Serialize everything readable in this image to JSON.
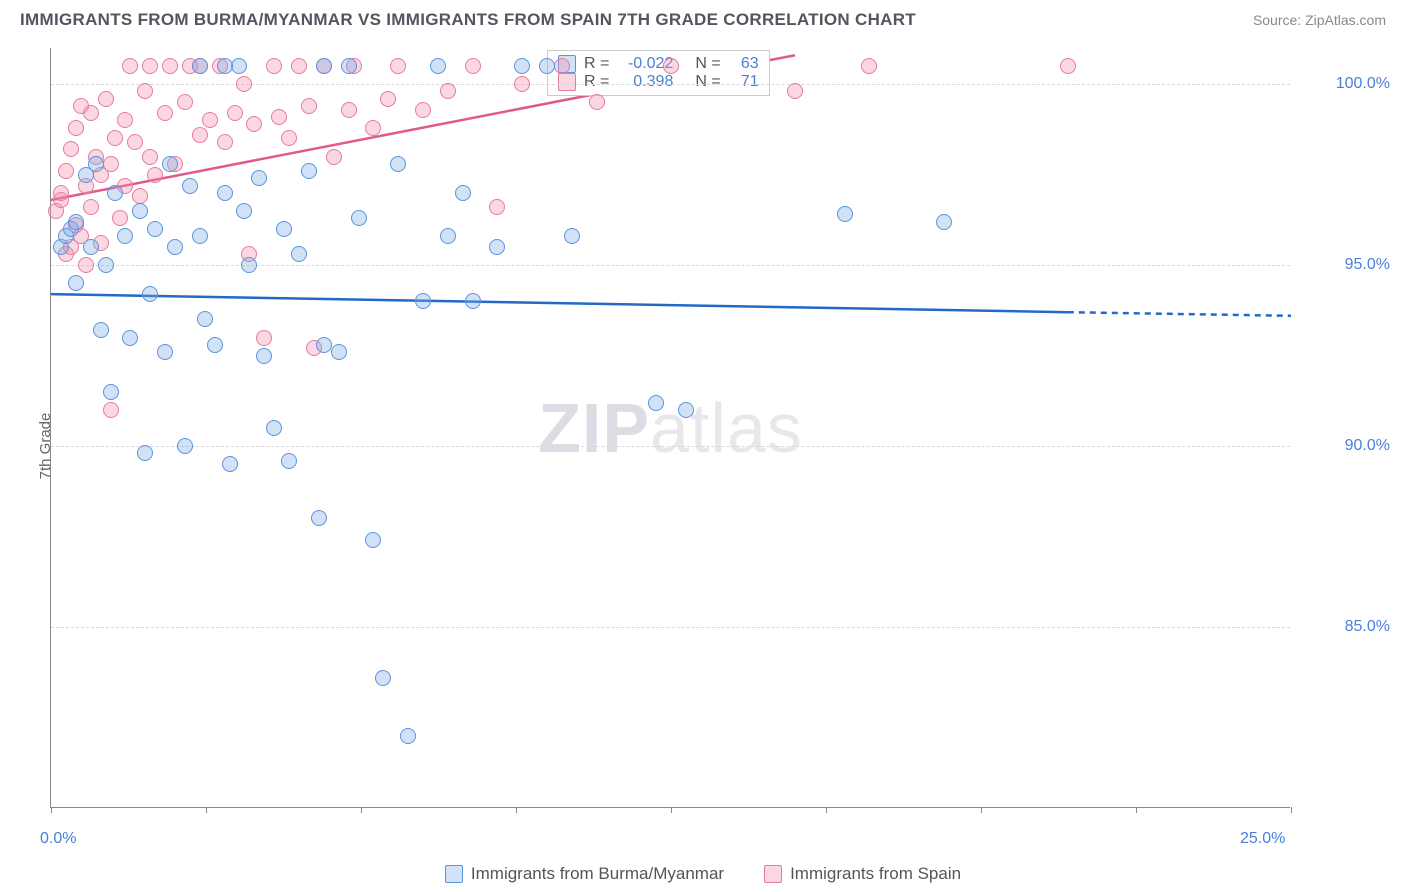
{
  "title": "IMMIGRANTS FROM BURMA/MYANMAR VS IMMIGRANTS FROM SPAIN 7TH GRADE CORRELATION CHART",
  "source": "Source: ZipAtlas.com",
  "ylabel": "7th Grade",
  "watermark_a": "ZIP",
  "watermark_b": "atlas",
  "series": [
    {
      "key": "burma",
      "label": "Immigrants from Burma/Myanmar",
      "fill": "rgba(122,168,228,0.35)",
      "stroke": "#5a94dc",
      "line_color": "#2269c8",
      "r_label": "R =",
      "r_value": "-0.022",
      "n_label": "N =",
      "n_value": "63",
      "trend": {
        "x1": 0.0,
        "y1": 94.2,
        "x2": 20.5,
        "y2": 93.7,
        "dash_to_x": 25.0,
        "dash_to_y": 93.6
      }
    },
    {
      "key": "spain",
      "label": "Immigrants from Spain",
      "fill": "rgba(240,140,170,0.35)",
      "stroke": "#e67ba0",
      "line_color": "#e05a8a",
      "r_label": "R =",
      "r_value": "0.398",
      "n_label": "N =",
      "n_value": "71",
      "trend": {
        "x1": 0.0,
        "y1": 96.8,
        "x2": 15.0,
        "y2": 100.8
      }
    }
  ],
  "chart": {
    "xlim": [
      0,
      25
    ],
    "ylim": [
      80,
      101
    ],
    "yticks": [
      85.0,
      90.0,
      95.0,
      100.0
    ],
    "ytick_labels": [
      "85.0%",
      "90.0%",
      "95.0%",
      "100.0%"
    ],
    "xtick_marks": [
      0,
      3.125,
      6.25,
      9.375,
      12.5,
      15.625,
      18.75,
      21.875,
      25
    ],
    "xtick_labels": [
      {
        "x": 0,
        "text": "0.0%"
      },
      {
        "x": 25,
        "text": "25.0%"
      }
    ],
    "marker_radius": 8,
    "background": "#ffffff",
    "grid_color": "#d8d8dc"
  },
  "points": {
    "burma": [
      [
        0.2,
        95.5
      ],
      [
        0.3,
        95.8
      ],
      [
        0.4,
        96.0
      ],
      [
        0.5,
        96.2
      ],
      [
        0.5,
        94.5
      ],
      [
        0.7,
        97.5
      ],
      [
        0.8,
        95.5
      ],
      [
        0.9,
        97.8
      ],
      [
        1.0,
        93.2
      ],
      [
        1.1,
        95.0
      ],
      [
        1.2,
        91.5
      ],
      [
        1.3,
        97.0
      ],
      [
        1.5,
        95.8
      ],
      [
        1.6,
        93.0
      ],
      [
        1.8,
        96.5
      ],
      [
        1.9,
        89.8
      ],
      [
        2.0,
        94.2
      ],
      [
        2.1,
        96.0
      ],
      [
        2.3,
        92.6
      ],
      [
        2.4,
        97.8
      ],
      [
        2.5,
        95.5
      ],
      [
        2.7,
        90.0
      ],
      [
        2.8,
        97.2
      ],
      [
        3.0,
        95.8
      ],
      [
        3.0,
        100.5
      ],
      [
        3.1,
        93.5
      ],
      [
        3.3,
        92.8
      ],
      [
        3.5,
        97.0
      ],
      [
        3.6,
        89.5
      ],
      [
        3.8,
        100.5
      ],
      [
        3.9,
        96.5
      ],
      [
        4.0,
        95.0
      ],
      [
        4.2,
        97.4
      ],
      [
        4.3,
        92.5
      ],
      [
        4.5,
        90.5
      ],
      [
        4.7,
        96.0
      ],
      [
        4.8,
        89.6
      ],
      [
        5.0,
        95.3
      ],
      [
        5.2,
        97.6
      ],
      [
        5.4,
        88.0
      ],
      [
        5.5,
        92.8
      ],
      [
        5.8,
        92.6
      ],
      [
        6.0,
        100.5
      ],
      [
        6.2,
        96.3
      ],
      [
        6.5,
        87.4
      ],
      [
        6.7,
        83.6
      ],
      [
        7.0,
        97.8
      ],
      [
        7.2,
        82.0
      ],
      [
        7.5,
        94.0
      ],
      [
        7.8,
        100.5
      ],
      [
        8.0,
        95.8
      ],
      [
        8.3,
        97.0
      ],
      [
        8.5,
        94.0
      ],
      [
        9.0,
        95.5
      ],
      [
        9.5,
        100.5
      ],
      [
        10.5,
        95.8
      ],
      [
        12.2,
        91.2
      ],
      [
        12.8,
        91.0
      ],
      [
        16.0,
        96.4
      ],
      [
        18.0,
        96.2
      ],
      [
        10.0,
        100.5
      ],
      [
        5.5,
        100.5
      ],
      [
        3.5,
        100.5
      ]
    ],
    "spain": [
      [
        0.1,
        96.5
      ],
      [
        0.2,
        96.8
      ],
      [
        0.2,
        97.0
      ],
      [
        0.3,
        95.3
      ],
      [
        0.3,
        97.6
      ],
      [
        0.4,
        95.5
      ],
      [
        0.4,
        98.2
      ],
      [
        0.5,
        96.1
      ],
      [
        0.5,
        98.8
      ],
      [
        0.6,
        95.8
      ],
      [
        0.6,
        99.4
      ],
      [
        0.7,
        95.0
      ],
      [
        0.7,
        97.2
      ],
      [
        0.8,
        99.2
      ],
      [
        0.8,
        96.6
      ],
      [
        0.9,
        98.0
      ],
      [
        1.0,
        97.5
      ],
      [
        1.0,
        95.6
      ],
      [
        1.1,
        99.6
      ],
      [
        1.2,
        97.8
      ],
      [
        1.2,
        91.0
      ],
      [
        1.3,
        98.5
      ],
      [
        1.4,
        96.3
      ],
      [
        1.5,
        99.0
      ],
      [
        1.5,
        97.2
      ],
      [
        1.6,
        100.5
      ],
      [
        1.7,
        98.4
      ],
      [
        1.8,
        96.9
      ],
      [
        1.9,
        99.8
      ],
      [
        2.0,
        98.0
      ],
      [
        2.0,
        100.5
      ],
      [
        2.1,
        97.5
      ],
      [
        2.3,
        99.2
      ],
      [
        2.4,
        100.5
      ],
      [
        2.5,
        97.8
      ],
      [
        2.7,
        99.5
      ],
      [
        2.8,
        100.5
      ],
      [
        3.0,
        98.6
      ],
      [
        3.0,
        100.5
      ],
      [
        3.2,
        99.0
      ],
      [
        3.4,
        100.5
      ],
      [
        3.5,
        98.4
      ],
      [
        3.7,
        99.2
      ],
      [
        3.9,
        100.0
      ],
      [
        4.0,
        95.3
      ],
      [
        4.1,
        98.9
      ],
      [
        4.3,
        93.0
      ],
      [
        4.5,
        100.5
      ],
      [
        4.6,
        99.1
      ],
      [
        4.8,
        98.5
      ],
      [
        5.0,
        100.5
      ],
      [
        5.2,
        99.4
      ],
      [
        5.3,
        92.7
      ],
      [
        5.5,
        100.5
      ],
      [
        5.7,
        98.0
      ],
      [
        6.0,
        99.3
      ],
      [
        6.1,
        100.5
      ],
      [
        6.5,
        98.8
      ],
      [
        6.8,
        99.6
      ],
      [
        7.0,
        100.5
      ],
      [
        7.5,
        99.3
      ],
      [
        8.0,
        99.8
      ],
      [
        8.5,
        100.5
      ],
      [
        9.0,
        96.6
      ],
      [
        9.5,
        100.0
      ],
      [
        10.3,
        100.5
      ],
      [
        11.0,
        99.5
      ],
      [
        12.5,
        100.5
      ],
      [
        15.0,
        99.8
      ],
      [
        16.5,
        100.5
      ],
      [
        20.5,
        100.5
      ]
    ]
  }
}
